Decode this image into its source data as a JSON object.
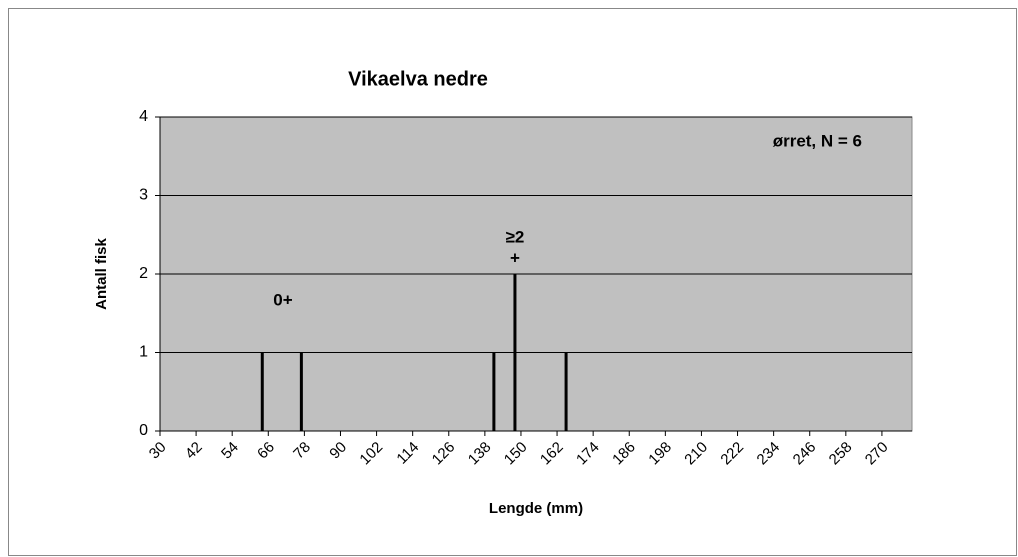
{
  "chart_data": {
    "type": "bar",
    "title": "Vikaelva nedre",
    "x_label": "Lengde (mm)",
    "y_label": "Antall fisk",
    "annotations": [
      "0+",
      "≥2",
      "+",
      "ørret, N = 6"
    ],
    "x": [
      64,
      77,
      141,
      148,
      165
    ],
    "values": [
      1,
      1,
      1,
      2,
      1
    ],
    "color": "#000000",
    "xlim": [
      30,
      280
    ],
    "xticks": [
      30,
      42,
      54,
      66,
      78,
      90,
      102,
      114,
      126,
      138,
      150,
      162,
      174,
      186,
      198,
      210,
      222,
      234,
      246,
      258,
      270
    ],
    "ylim": [
      0,
      4
    ],
    "yticks": [
      0,
      1,
      2,
      3,
      4
    ],
    "grid": true
  }
}
